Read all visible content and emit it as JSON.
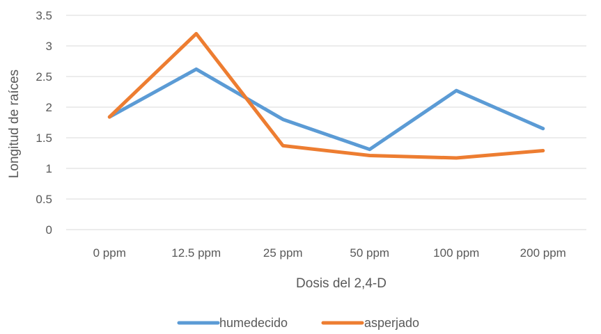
{
  "chart_data": {
    "type": "line",
    "title": "",
    "xlabel": "Dosis del 2,4-D",
    "ylabel": "Longitud de raíces",
    "categories": [
      "0 ppm",
      "12.5 ppm",
      "25 ppm",
      "50 ppm",
      "100 ppm",
      "200 ppm"
    ],
    "ylim": [
      0,
      3.5
    ],
    "yticks": [
      "0",
      "0.5",
      "1",
      "1.5",
      "2",
      "2.5",
      "3",
      "3.5"
    ],
    "grid": true,
    "legend_position": "bottom",
    "series": [
      {
        "name": "humedecido",
        "color": "#5B9BD5",
        "values": [
          1.84,
          2.62,
          1.8,
          1.31,
          2.27,
          1.65
        ]
      },
      {
        "name": "asperjado",
        "color": "#ED7D31",
        "values": [
          1.84,
          3.2,
          1.37,
          1.21,
          1.17,
          1.29
        ]
      }
    ]
  }
}
